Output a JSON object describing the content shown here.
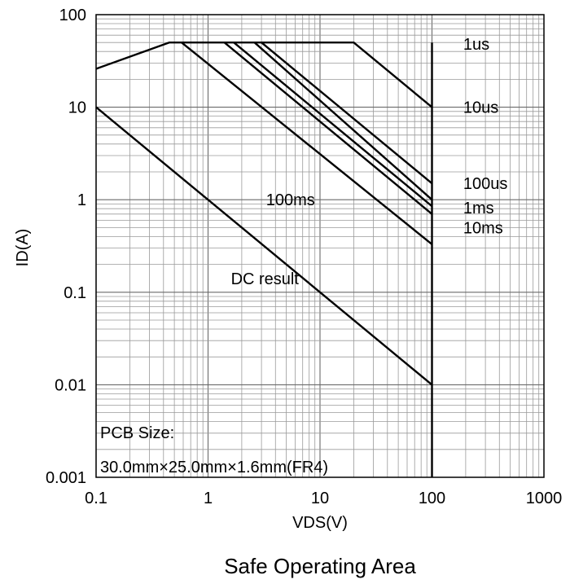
{
  "chart_data": {
    "type": "line",
    "title": "Safe Operating Area",
    "xlabel": "VDS(V)",
    "ylabel": "ID(A)",
    "x_scale": "log",
    "y_scale": "log",
    "xlim": [
      0.1,
      1000
    ],
    "ylim": [
      0.001,
      100
    ],
    "x_ticks": [
      "0.1",
      "1",
      "10",
      "100",
      "1000"
    ],
    "y_ticks": [
      "0.001",
      "0.01",
      "0.1",
      "1",
      "10",
      "100"
    ],
    "grid": true,
    "note_lines": [
      "PCB Size:",
      "30.0mm×25.0mm×1.6mm(FR4)"
    ],
    "series": [
      {
        "name": "1us",
        "x": [
          0.1,
          0.45,
          20,
          100
        ],
        "y": [
          26,
          50,
          50,
          10
        ]
      },
      {
        "name": "10us",
        "x": [
          3,
          100
        ],
        "y": [
          50,
          1.5
        ]
      },
      {
        "name": "100us",
        "x": [
          2.6,
          100
        ],
        "y": [
          50,
          1.0
        ]
      },
      {
        "name": "1ms",
        "x": [
          1.7,
          100
        ],
        "y": [
          50,
          0.85
        ]
      },
      {
        "name": "10ms",
        "x": [
          1.4,
          100
        ],
        "y": [
          50,
          0.7
        ]
      },
      {
        "name": "100ms",
        "x": [
          0.58,
          100
        ],
        "y": [
          50,
          0.33
        ]
      },
      {
        "name": "DC result",
        "x": [
          0.1,
          100
        ],
        "y": [
          10,
          0.01
        ]
      }
    ],
    "vds_limit": {
      "x": 100,
      "ylim": [
        0.001,
        50
      ]
    },
    "series_labels": [
      {
        "text": "1us",
        "x": 190,
        "y": 48
      },
      {
        "text": "10us",
        "x": 190,
        "y": 10
      },
      {
        "text": "100us",
        "x": 190,
        "y": 1.5
      },
      {
        "text": "1ms",
        "x": 190,
        "y": 0.82
      },
      {
        "text": "10ms",
        "x": 190,
        "y": 0.5
      },
      {
        "text": "100ms",
        "x": 3.3,
        "y": 1.0
      },
      {
        "text": "DC result",
        "x": 1.6,
        "y": 0.14
      }
    ]
  }
}
